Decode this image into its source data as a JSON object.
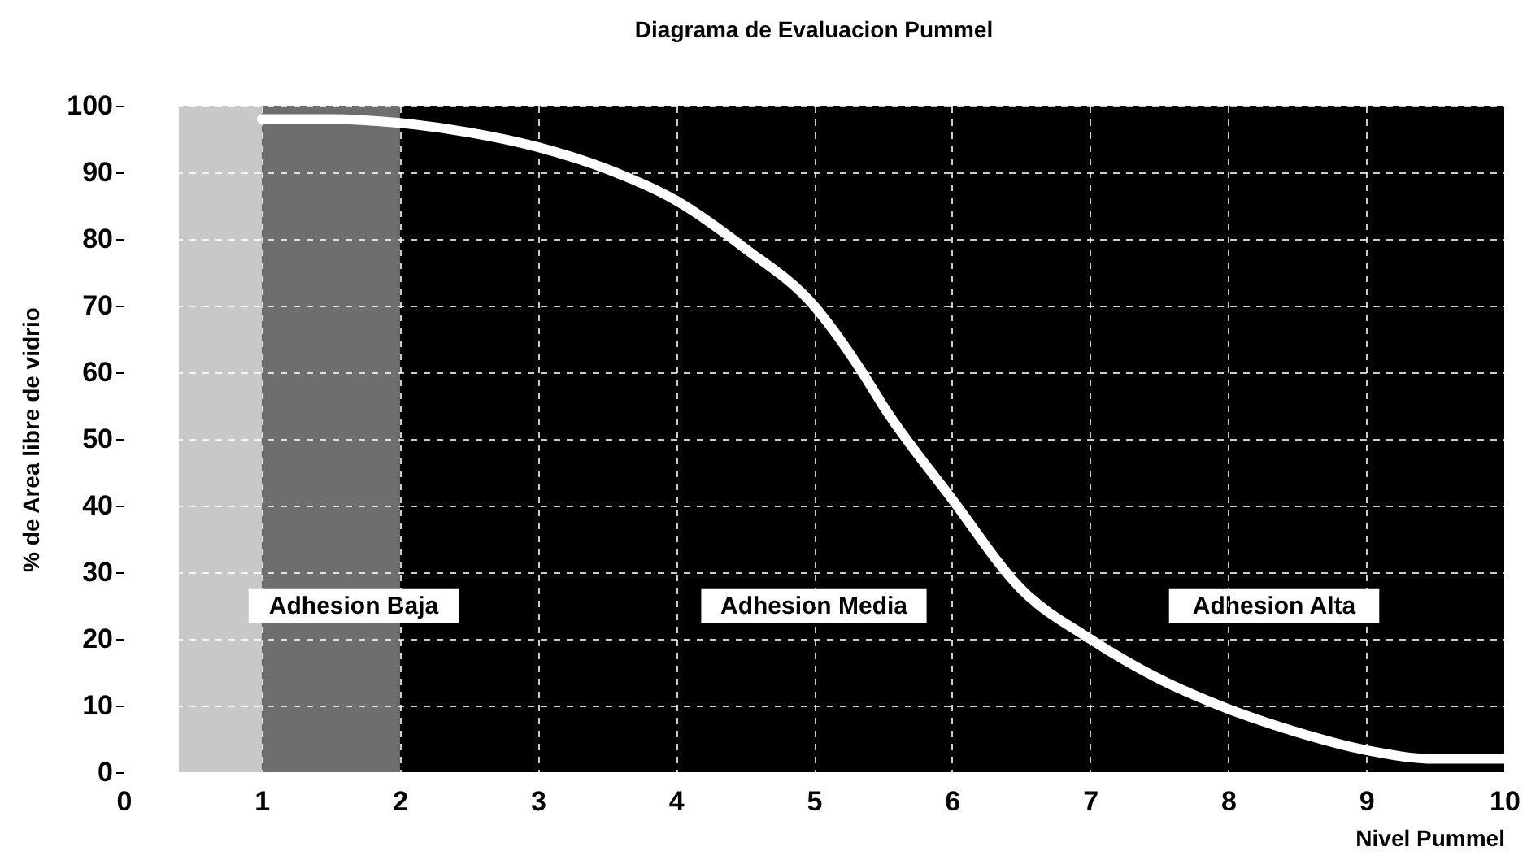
{
  "chart_data": {
    "type": "line",
    "title": "Diagrama de Evaluacion Pummel",
    "xlabel": "Nivel Pummel",
    "ylabel": "% de Area libre de vidrio",
    "x": [
      1,
      1.5,
      2,
      2.5,
      3,
      3.5,
      4,
      4.5,
      5,
      5.35,
      5.5,
      6,
      6.5,
      7,
      7.5,
      8,
      8.5,
      9,
      9.5,
      10
    ],
    "series": [
      {
        "color": "#ffffff",
        "values": [
          98,
          98,
          97.4,
          96,
          93.8,
          90.5,
          85.8,
          78.6,
          70,
          60,
          55,
          41,
          27.5,
          20,
          14,
          9.5,
          6,
          3.3,
          2,
          2
        ]
      }
    ],
    "xlim": [
      0,
      10
    ],
    "xticks": [
      0,
      1,
      2,
      3,
      4,
      5,
      6,
      7,
      8,
      9,
      10
    ],
    "ylim": [
      0,
      100
    ],
    "yticks": [
      0,
      10,
      20,
      30,
      40,
      50,
      60,
      70,
      80,
      90,
      100
    ],
    "grid": true,
    "marker": "none",
    "line_style": "solid",
    "bands": [
      {
        "axis": "x",
        "from": 0.4,
        "to": 1,
        "color": "#c8c8c8"
      },
      {
        "axis": "x",
        "from": 1,
        "to": 2,
        "color": "#6e6e6e"
      },
      {
        "axis": "x",
        "from": 2,
        "to": 10,
        "color": "#000000"
      }
    ],
    "annotations": [
      "Adhesion Baja",
      "Adhesion Media",
      "Adhesion Alta"
    ]
  }
}
